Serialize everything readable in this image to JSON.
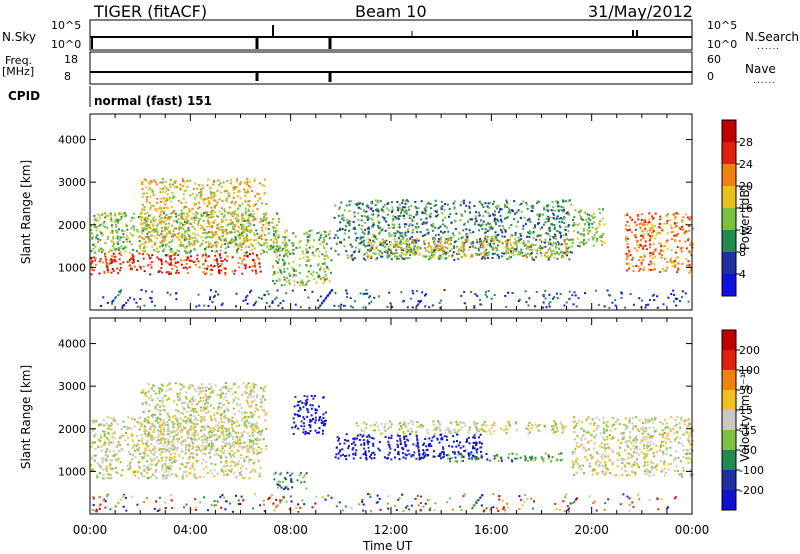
{
  "header": {
    "site_title": "TIGER (fitACF)",
    "beam": "Beam 10",
    "date": "31/May/2012"
  },
  "top_panels": {
    "nsky_label": "N.Sky",
    "nsearch_label": "N.Search",
    "nsky_ticks": [
      "10^5",
      "10^0"
    ],
    "nsearch_ticks": [
      "10^5",
      "10^0"
    ],
    "freq_label_1": "Freq.",
    "freq_label_2": "[MHz]",
    "freq_ticks": [
      "18",
      "8"
    ],
    "nave_label": "Nave",
    "nave_ticks": [
      "60",
      "0"
    ],
    "cpid_label": "CPID",
    "cpid_value": "normal (fast) 151",
    "legend_dots": "......"
  },
  "chart_data": [
    {
      "type": "heatmap",
      "name": "power",
      "ylabel": "Slant Range [km]",
      "ylim": [
        0,
        4600
      ],
      "yticks": [
        "1000",
        "2000",
        "3000",
        "4000"
      ],
      "yticks_values": [
        1000,
        2000,
        3000,
        4000
      ],
      "xlim": [
        0,
        24
      ],
      "colorbar_label": "Power [dB]",
      "colorbar_ticks": [
        "4",
        "8",
        "12",
        "16",
        "20",
        "24",
        "28"
      ],
      "colorbar_colors": [
        "#1010e0",
        "#2030a0",
        "#208a50",
        "#7cc040",
        "#e8c020",
        "#f08010",
        "#e02010",
        "#c00000"
      ],
      "echo_bands": [
        {
          "t0": 0.0,
          "t1": 6.8,
          "r0": 850,
          "r1": 1350,
          "level": 6
        },
        {
          "t0": 0.0,
          "t1": 7.5,
          "r0": 1350,
          "r1": 2300,
          "level": 3
        },
        {
          "t0": 2.0,
          "t1": 7.0,
          "r0": 1500,
          "r1": 3100,
          "level": 4
        },
        {
          "t0": 7.2,
          "t1": 9.6,
          "r0": 600,
          "r1": 1900,
          "level": 3
        },
        {
          "t0": 9.7,
          "t1": 19.2,
          "r0": 1200,
          "r1": 2600,
          "level": 2
        },
        {
          "t0": 11.0,
          "t1": 19.0,
          "r0": 1250,
          "r1": 1700,
          "level": 4
        },
        {
          "t0": 19.2,
          "t1": 20.5,
          "r0": 1500,
          "r1": 2400,
          "level": 3
        },
        {
          "t0": 21.3,
          "t1": 24.0,
          "r0": 900,
          "r1": 2300,
          "level": 5
        }
      ]
    },
    {
      "type": "heatmap",
      "name": "velocity",
      "ylabel": "Slant Range [km]",
      "xlabel": "Time UT",
      "ylim": [
        0,
        4600
      ],
      "yticks": [
        "1000",
        "2000",
        "3000",
        "4000"
      ],
      "yticks_values": [
        1000,
        2000,
        3000,
        4000
      ],
      "xlim": [
        0,
        24
      ],
      "xticks": [
        "00:00",
        "04:00",
        "08:00",
        "12:00",
        "16:00",
        "20:00",
        "00:00"
      ],
      "xticks_values": [
        0,
        4,
        8,
        12,
        16,
        20,
        24
      ],
      "colorbar_label": "Velocity [m s⁻¹]",
      "colorbar_ticks": [
        "200",
        "100",
        "50",
        "15",
        "-15",
        "-50",
        "-100",
        "-200"
      ],
      "colorbar_colors": [
        "#1010d0",
        "#2030a0",
        "#208a50",
        "#80c040",
        "#c8c8c0",
        "#f0c020",
        "#f08010",
        "#e02010",
        "#c00000"
      ],
      "echo_bands": [
        {
          "t0": 0.0,
          "t1": 6.8,
          "r0": 850,
          "r1": 2300,
          "level": 4
        },
        {
          "t0": 2.0,
          "t1": 7.0,
          "r0": 1500,
          "r1": 3100,
          "level": 4
        },
        {
          "t0": 7.3,
          "t1": 8.6,
          "r0": 600,
          "r1": 1000,
          "level": 2
        },
        {
          "t0": 8.0,
          "t1": 9.4,
          "r0": 1900,
          "r1": 2800,
          "level": 0
        },
        {
          "t0": 9.7,
          "t1": 15.8,
          "r0": 1300,
          "r1": 1900,
          "level": 0
        },
        {
          "t0": 10.5,
          "t1": 19.0,
          "r0": 1900,
          "r1": 2200,
          "level": 4
        },
        {
          "t0": 14.0,
          "t1": 18.8,
          "r0": 1250,
          "r1": 1450,
          "level": 2
        },
        {
          "t0": 19.2,
          "t1": 24.0,
          "r0": 900,
          "r1": 2300,
          "level": 4
        }
      ]
    }
  ]
}
